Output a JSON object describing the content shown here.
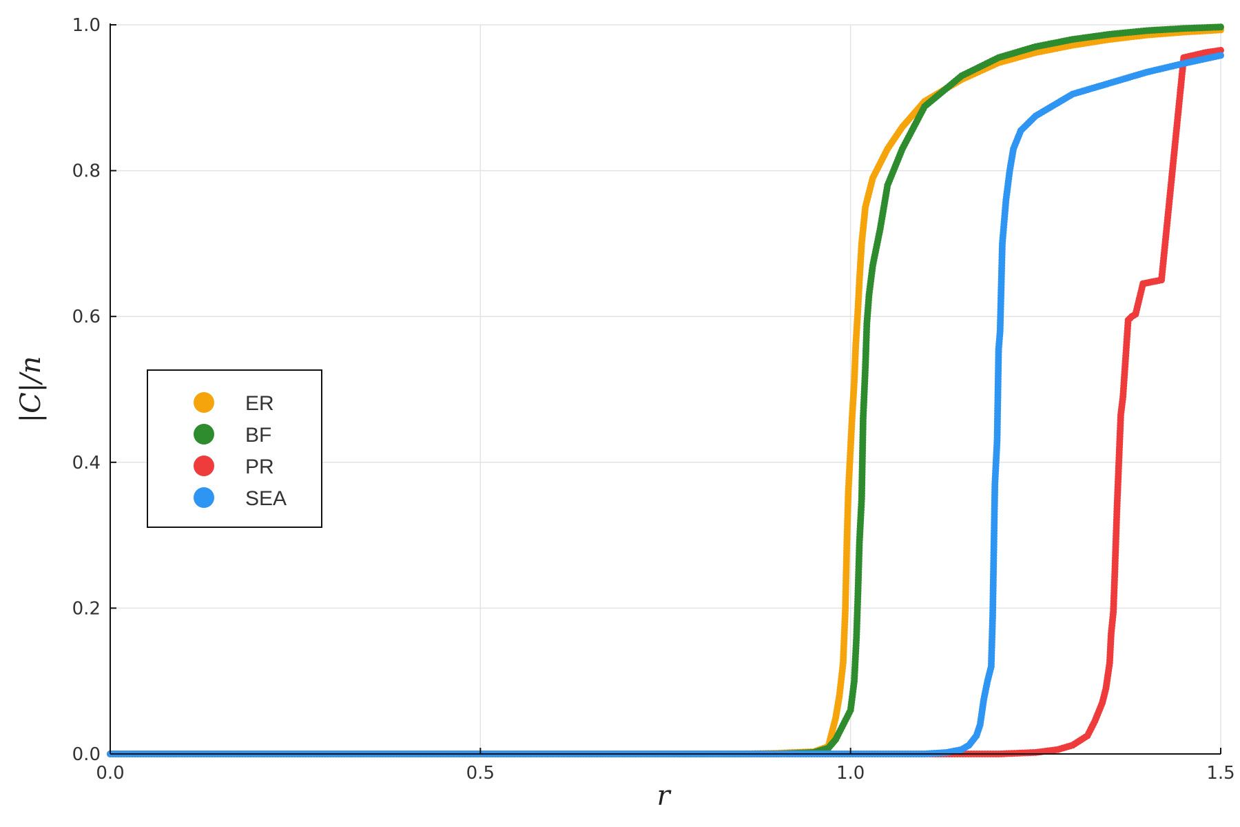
{
  "chart_data": {
    "type": "scatter",
    "title": "",
    "xlabel": "r",
    "ylabel": "|C|/n",
    "xlim": [
      0.0,
      1.5
    ],
    "ylim": [
      0.0,
      1.0
    ],
    "xticks": [
      "0.0",
      "0.5",
      "1.0",
      "1.5"
    ],
    "xtick_values": [
      0.0,
      0.5,
      1.0,
      1.5
    ],
    "yticks": [
      "0.0",
      "0.2",
      "0.4",
      "0.6",
      "0.8",
      "1.0"
    ],
    "ytick_values": [
      0.0,
      0.2,
      0.4,
      0.6,
      0.8,
      1.0
    ],
    "grid": true,
    "legend_position": "left-middle",
    "series": [
      {
        "name": "ER",
        "color": "#f5a40c",
        "points": [
          [
            0.0,
            0.0
          ],
          [
            0.85,
            0.0
          ],
          [
            0.9,
            0.001
          ],
          [
            0.95,
            0.003
          ],
          [
            0.97,
            0.01
          ],
          [
            0.975,
            0.03
          ],
          [
            0.98,
            0.05
          ],
          [
            0.985,
            0.08
          ],
          [
            0.99,
            0.125
          ],
          [
            0.993,
            0.2
          ],
          [
            0.995,
            0.29
          ],
          [
            0.997,
            0.36
          ],
          [
            1.0,
            0.42
          ],
          [
            1.002,
            0.46
          ],
          [
            1.005,
            0.51
          ],
          [
            1.007,
            0.56
          ],
          [
            1.01,
            0.61
          ],
          [
            1.012,
            0.65
          ],
          [
            1.015,
            0.7
          ],
          [
            1.02,
            0.75
          ],
          [
            1.03,
            0.79
          ],
          [
            1.05,
            0.83
          ],
          [
            1.07,
            0.86
          ],
          [
            1.1,
            0.895
          ],
          [
            1.15,
            0.925
          ],
          [
            1.2,
            0.948
          ],
          [
            1.25,
            0.962
          ],
          [
            1.3,
            0.972
          ],
          [
            1.35,
            0.98
          ],
          [
            1.4,
            0.986
          ],
          [
            1.45,
            0.99
          ],
          [
            1.5,
            0.993
          ]
        ]
      },
      {
        "name": "BF",
        "color": "#2e8b2e",
        "points": [
          [
            0.0,
            0.0
          ],
          [
            0.9,
            0.0
          ],
          [
            0.95,
            0.002
          ],
          [
            0.97,
            0.008
          ],
          [
            0.98,
            0.02
          ],
          [
            0.99,
            0.04
          ],
          [
            1.0,
            0.06
          ],
          [
            1.005,
            0.1
          ],
          [
            1.008,
            0.16
          ],
          [
            1.01,
            0.22
          ],
          [
            1.012,
            0.29
          ],
          [
            1.015,
            0.35
          ],
          [
            1.017,
            0.46
          ],
          [
            1.02,
            0.53
          ],
          [
            1.022,
            0.59
          ],
          [
            1.025,
            0.63
          ],
          [
            1.03,
            0.67
          ],
          [
            1.04,
            0.72
          ],
          [
            1.05,
            0.78
          ],
          [
            1.07,
            0.83
          ],
          [
            1.1,
            0.888
          ],
          [
            1.15,
            0.93
          ],
          [
            1.2,
            0.955
          ],
          [
            1.25,
            0.97
          ],
          [
            1.3,
            0.98
          ],
          [
            1.35,
            0.987
          ],
          [
            1.4,
            0.992
          ],
          [
            1.45,
            0.995
          ],
          [
            1.5,
            0.997
          ]
        ]
      },
      {
        "name": "PR",
        "color": "#ee3b3b",
        "points": [
          [
            0.0,
            0.0
          ],
          [
            1.2,
            0.0
          ],
          [
            1.25,
            0.002
          ],
          [
            1.28,
            0.006
          ],
          [
            1.3,
            0.012
          ],
          [
            1.32,
            0.025
          ],
          [
            1.33,
            0.045
          ],
          [
            1.34,
            0.07
          ],
          [
            1.345,
            0.09
          ],
          [
            1.35,
            0.125
          ],
          [
            1.352,
            0.165
          ],
          [
            1.355,
            0.195
          ],
          [
            1.357,
            0.25
          ],
          [
            1.36,
            0.34
          ],
          [
            1.365,
            0.465
          ],
          [
            1.368,
            0.49
          ],
          [
            1.375,
            0.595
          ],
          [
            1.38,
            0.6
          ],
          [
            1.385,
            0.603
          ],
          [
            1.395,
            0.645
          ],
          [
            1.41,
            0.648
          ],
          [
            1.42,
            0.65
          ],
          [
            1.45,
            0.955
          ],
          [
            1.48,
            0.962
          ],
          [
            1.5,
            0.965
          ]
        ]
      },
      {
        "name": "SEA",
        "color": "#2f95f2",
        "points": [
          [
            0.0,
            0.0
          ],
          [
            1.1,
            0.0
          ],
          [
            1.13,
            0.002
          ],
          [
            1.15,
            0.006
          ],
          [
            1.16,
            0.012
          ],
          [
            1.17,
            0.025
          ],
          [
            1.175,
            0.04
          ],
          [
            1.18,
            0.075
          ],
          [
            1.185,
            0.1
          ],
          [
            1.19,
            0.12
          ],
          [
            1.192,
            0.19
          ],
          [
            1.195,
            0.37
          ],
          [
            1.197,
            0.41
          ],
          [
            1.198,
            0.43
          ],
          [
            1.2,
            0.555
          ],
          [
            1.202,
            0.58
          ],
          [
            1.205,
            0.7
          ],
          [
            1.21,
            0.76
          ],
          [
            1.215,
            0.8
          ],
          [
            1.22,
            0.83
          ],
          [
            1.23,
            0.855
          ],
          [
            1.25,
            0.875
          ],
          [
            1.28,
            0.893
          ],
          [
            1.3,
            0.905
          ],
          [
            1.35,
            0.92
          ],
          [
            1.4,
            0.935
          ],
          [
            1.45,
            0.947
          ],
          [
            1.5,
            0.958
          ]
        ]
      }
    ]
  }
}
